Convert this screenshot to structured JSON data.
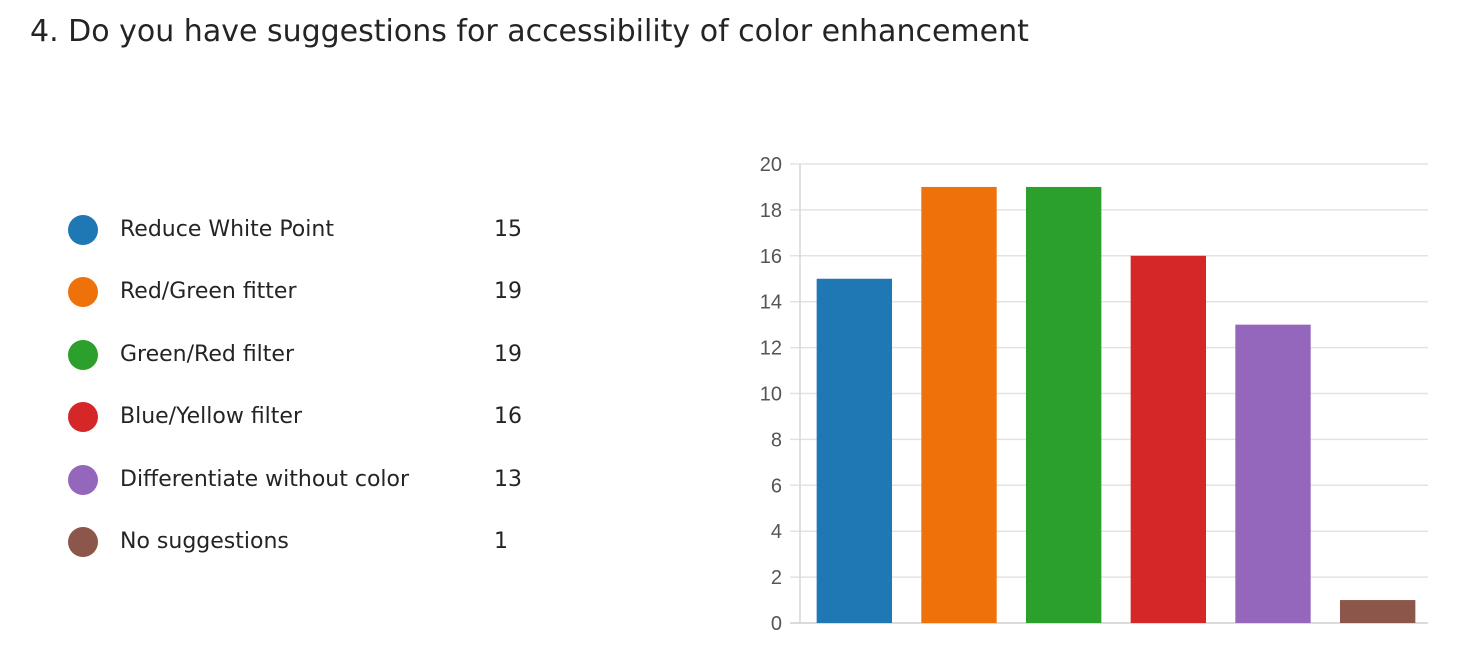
{
  "question": {
    "title": "4.  Do you have suggestions for accessibility of color enhancement"
  },
  "legend": [
    {
      "label": "Reduce White Point",
      "count": "15",
      "color": "#1F77B4"
    },
    {
      "label": "Red/Green fitter",
      "count": "19",
      "color": "#EF7109"
    },
    {
      "label": "Green/Red filter",
      "count": "19",
      "color": "#2CA02C"
    },
    {
      "label": "Blue/Yellow filter",
      "count": "16",
      "color": "#D62728"
    },
    {
      "label": "Differentiate without color",
      "count": "13",
      "color": "#9467BD"
    },
    {
      "label": "No suggestions",
      "count": "1",
      "color": "#8C564B"
    }
  ],
  "chart_data": {
    "type": "bar",
    "categories": [
      "Reduce White Point",
      "Red/Green fitter",
      "Green/Red filter",
      "Blue/Yellow filter",
      "Differentiate without color",
      "No suggestions"
    ],
    "values": [
      15,
      19,
      19,
      16,
      13,
      1
    ],
    "colors": [
      "#1F77B4",
      "#EF7109",
      "#2CA02C",
      "#D62728",
      "#9467BD",
      "#8C564B"
    ],
    "ylim": [
      0,
      20
    ],
    "yticks": [
      0,
      2,
      4,
      6,
      8,
      10,
      12,
      14,
      16,
      18,
      20
    ],
    "grid": true,
    "legend_placement": "left"
  }
}
